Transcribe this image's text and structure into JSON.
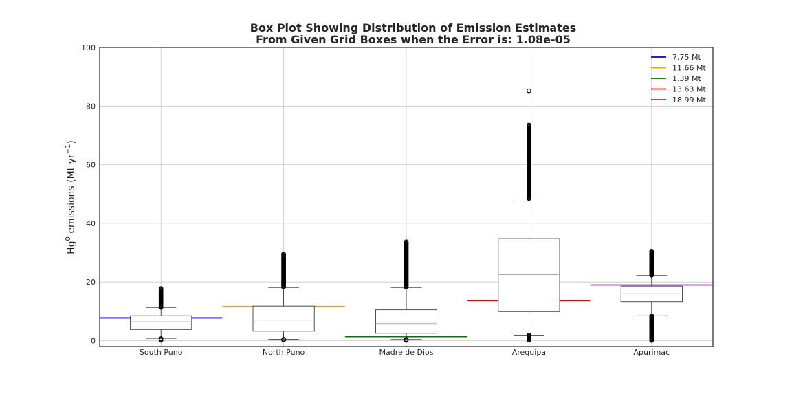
{
  "chart_data": {
    "type": "box",
    "title_line1": "Box Plot Showing Distribution of Emission Estimates",
    "title_line2": "From Given Grid Boxes when the Error is: 1.08e-05",
    "ylabel_main": "Hg",
    "ylabel_sup": "0",
    "ylabel_rest": " emissions (Mt yr",
    "ylabel_sup2": "−1",
    "ylabel_end": ")",
    "ylim": [
      -2,
      100
    ],
    "yticks": [
      0,
      20,
      40,
      60,
      80,
      100
    ],
    "grid": true,
    "legend_position": "top-right",
    "categories": [
      "South Puno",
      "North Puno",
      "Madre de Dios",
      "Arequipa",
      "Apurimac"
    ],
    "boxes": [
      {
        "whislo": 0.8,
        "q1": 3.8,
        "med": 6.4,
        "q3": 8.5,
        "whishi": 11.3,
        "fliers_low": [
          0.0,
          0.7
        ],
        "fliers_high": [
          11.3,
          17.8
        ]
      },
      {
        "whislo": 0.5,
        "q1": 3.2,
        "med": 7.0,
        "q3": 11.8,
        "whishi": 18.1,
        "fliers_low": [
          0.0,
          0.5
        ],
        "fliers_high": [
          18.1,
          29.5
        ]
      },
      {
        "whislo": 0.4,
        "q1": 2.5,
        "med": 5.8,
        "q3": 10.5,
        "whishi": 18.1,
        "fliers_low": [
          0.0,
          0.4
        ],
        "fliers_high": [
          18.1,
          33.7
        ]
      },
      {
        "whislo": 1.9,
        "q1": 9.9,
        "med": 22.5,
        "q3": 34.8,
        "whishi": 48.3,
        "fliers_low": [
          0.0,
          1.9
        ],
        "fliers_high": [
          48.3,
          73.5
        ],
        "fliers_extra": [
          85.2
        ]
      },
      {
        "whislo": 8.5,
        "q1": 13.3,
        "med": 16.0,
        "q3": 18.6,
        "whishi": 22.2,
        "fliers_low": [
          0.0,
          8.5
        ],
        "fliers_high": [
          22.2,
          30.5
        ]
      }
    ],
    "reference_lines": [
      {
        "label": "7.75 Mt",
        "value": 7.75,
        "color": "#0000cc",
        "category_index": 0
      },
      {
        "label": "11.66 Mt",
        "value": 11.66,
        "color": "#ff9900",
        "category_index": 1
      },
      {
        "label": "1.39 Mt",
        "value": 1.39,
        "color": "#007700",
        "category_index": 2
      },
      {
        "label": "13.63 Mt",
        "value": 13.63,
        "color": "#ee0000",
        "category_index": 3
      },
      {
        "label": "18.99 Mt",
        "value": 18.99,
        "color": "#9922cc",
        "category_index": 4
      }
    ]
  }
}
